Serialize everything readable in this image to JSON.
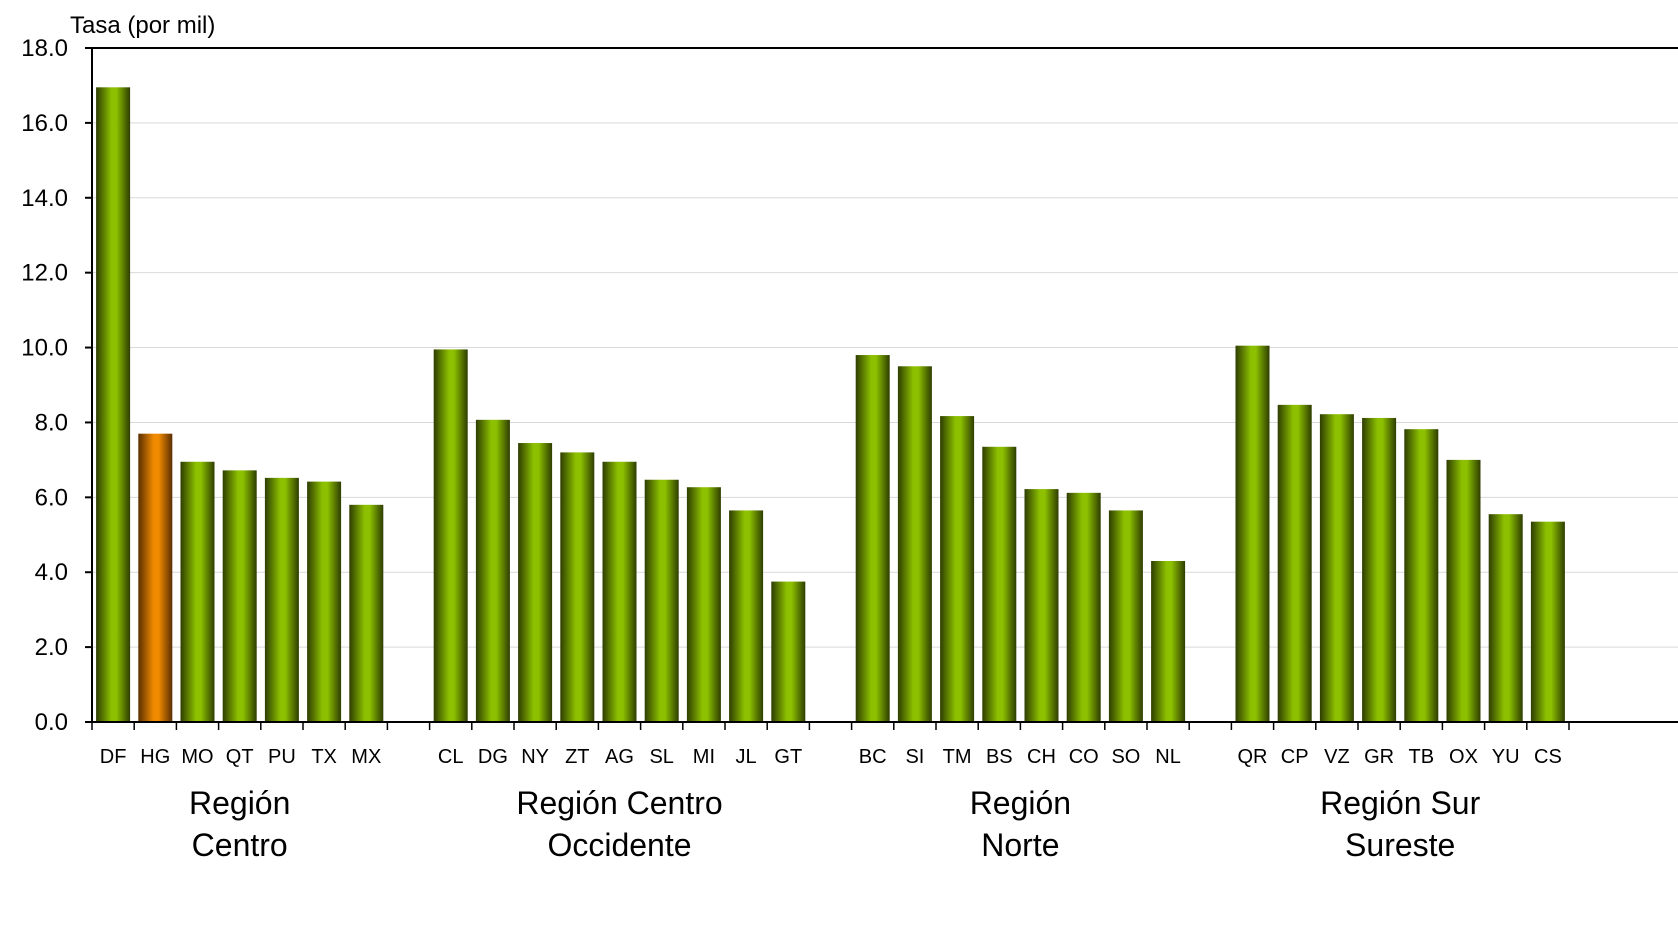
{
  "chart_data": {
    "type": "bar",
    "ylabel": "Tasa (por mil)",
    "ylim": [
      0,
      18
    ],
    "y_ticks": [
      "0.0",
      "2.0",
      "4.0",
      "6.0",
      "8.0",
      "10.0",
      "12.0",
      "14.0",
      "16.0",
      "18.0"
    ],
    "grid": true,
    "legend": "none",
    "colors": {
      "bar": "#8cc000",
      "bar_dark": "#2e3d00",
      "highlight": "#f08a00",
      "highlight_dark": "#5a2e00",
      "grid": "#d9d9d9",
      "axis": "#000000"
    },
    "groups": [
      {
        "label_lines": [
          "Región",
          "Centro"
        ],
        "categories": [
          "DF",
          "HG",
          "MO",
          "QT",
          "PU",
          "TX",
          "MX"
        ],
        "values": [
          16.95,
          7.7,
          6.95,
          6.72,
          6.52,
          6.42,
          5.8
        ]
      },
      {
        "label_lines": [
          "Región Centro",
          "Occidente"
        ],
        "categories": [
          "CL",
          "DG",
          "NY",
          "ZT",
          "AG",
          "SL",
          "MI",
          "JL",
          "GT"
        ],
        "values": [
          9.95,
          8.07,
          7.45,
          7.2,
          6.95,
          6.47,
          6.27,
          5.65,
          3.75
        ]
      },
      {
        "label_lines": [
          "Región",
          "Norte"
        ],
        "categories": [
          "BC",
          "SI",
          "TM",
          "BS",
          "CH",
          "CO",
          "SO",
          "NL"
        ],
        "values": [
          9.8,
          9.5,
          8.17,
          7.35,
          6.22,
          6.12,
          5.65,
          4.3
        ]
      },
      {
        "label_lines": [
          "Región Sur",
          "Sureste"
        ],
        "categories": [
          "QR",
          "CP",
          "VZ",
          "GR",
          "TB",
          "OX",
          "YU",
          "CS"
        ],
        "values": [
          10.05,
          8.47,
          8.22,
          8.12,
          7.82,
          7.0,
          5.55,
          5.35
        ]
      }
    ],
    "highlight": {
      "group": 0,
      "index": 1
    }
  }
}
